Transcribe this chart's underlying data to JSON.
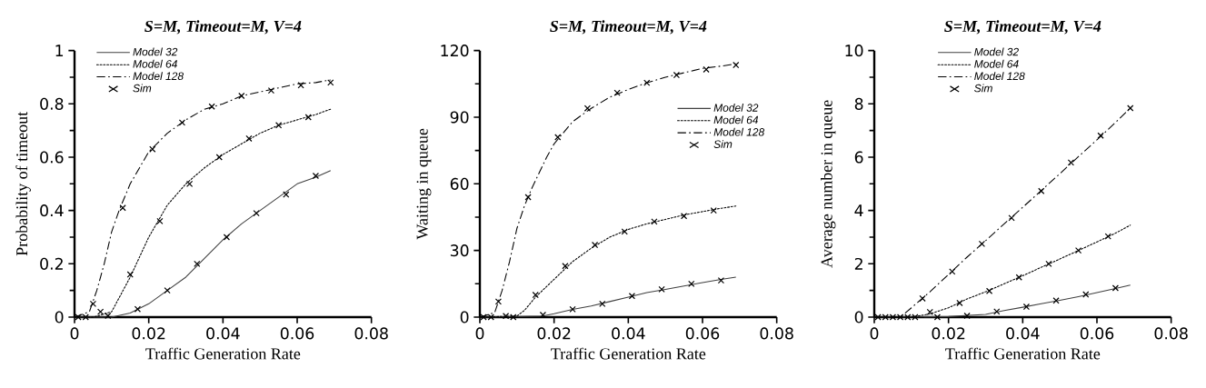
{
  "chart_data": [
    {
      "type": "line",
      "title": "S=M, Timeout=M, V=4",
      "xlabel": "Traffic Generation Rate",
      "ylabel": "Probability of timeout",
      "xlim": [
        0,
        0.08
      ],
      "xticks": [
        0,
        0.02,
        0.04,
        0.06,
        0.08
      ],
      "ylim": [
        0,
        1
      ],
      "yticks": [
        0,
        0.2,
        0.4,
        0.6,
        0.8,
        1
      ],
      "legend": "top left",
      "series": [
        {
          "name": "Model 32",
          "type": "line",
          "color": "#404040",
          "line_style": "solid",
          "x": [
            0,
            0.01,
            0.015,
            0.02,
            0.025,
            0.03,
            0.035,
            0.04,
            0.045,
            0.05,
            0.055,
            0.06,
            0.065,
            0.069
          ],
          "values": [
            0,
            0,
            0.015,
            0.05,
            0.1,
            0.15,
            0.22,
            0.29,
            0.35,
            0.4,
            0.45,
            0.5,
            0.525,
            0.55
          ]
        },
        {
          "name": "Model 64",
          "type": "line",
          "color": "#000000",
          "line_style": "dotted",
          "x": [
            0,
            0.005,
            0.01,
            0.015,
            0.02,
            0.025,
            0.03,
            0.035,
            0.04,
            0.045,
            0.05,
            0.055,
            0.06,
            0.065,
            0.069
          ],
          "values": [
            0,
            0,
            0.02,
            0.15,
            0.3,
            0.42,
            0.5,
            0.56,
            0.61,
            0.65,
            0.69,
            0.72,
            0.74,
            0.76,
            0.78
          ]
        },
        {
          "name": "Model 128",
          "type": "line",
          "color": "#000000",
          "line_style": "dashed",
          "x": [
            0,
            0.004,
            0.006,
            0.008,
            0.01,
            0.012,
            0.015,
            0.02,
            0.025,
            0.03,
            0.035,
            0.04,
            0.045,
            0.05,
            0.055,
            0.06,
            0.065,
            0.069
          ],
          "values": [
            0,
            0.02,
            0.1,
            0.2,
            0.32,
            0.4,
            0.5,
            0.62,
            0.69,
            0.74,
            0.78,
            0.8,
            0.83,
            0.845,
            0.86,
            0.875,
            0.88,
            0.89
          ]
        },
        {
          "name": "Sim",
          "type": "scatter",
          "color": "#000000",
          "marker": "cross",
          "x": [
            0.001,
            0.003,
            0.005,
            0.007,
            0.009,
            0.013,
            0.015,
            0.017,
            0.021,
            0.023,
            0.025,
            0.029,
            0.031,
            0.033,
            0.037,
            0.039,
            0.041,
            0.045,
            0.047,
            0.049,
            0.053,
            0.055,
            0.057,
            0.061,
            0.063,
            0.065,
            0.069
          ],
          "values": [
            0,
            0,
            0.05,
            0.02,
            0.005,
            0.41,
            0.16,
            0.03,
            0.63,
            0.36,
            0.1,
            0.73,
            0.5,
            0.2,
            0.79,
            0.6,
            0.3,
            0.83,
            0.67,
            0.39,
            0.85,
            0.72,
            0.46,
            0.87,
            0.75,
            0.53,
            0.88
          ]
        }
      ]
    },
    {
      "type": "line",
      "title": "S=M, Timeout=M, V=4",
      "xlabel": "Traffic Generation Rate",
      "ylabel": "Waiting in queue",
      "xlim": [
        0,
        0.08
      ],
      "xticks": [
        0,
        0.02,
        0.04,
        0.06,
        0.08
      ],
      "ylim": [
        0,
        120
      ],
      "yticks": [
        0,
        30,
        60,
        90,
        120
      ],
      "legend": "right",
      "series": [
        {
          "name": "Model 32",
          "type": "line",
          "color": "#404040",
          "line_style": "solid",
          "x": [
            0,
            0.017,
            0.02,
            0.025,
            0.03,
            0.035,
            0.04,
            0.045,
            0.05,
            0.055,
            0.06,
            0.065,
            0.069
          ],
          "values": [
            0,
            0.5,
            1.5,
            3.5,
            5,
            7,
            9,
            11,
            12.5,
            14,
            15.5,
            17,
            18
          ]
        },
        {
          "name": "Model 64",
          "type": "line",
          "color": "#000000",
          "line_style": "dotted",
          "x": [
            0,
            0.01,
            0.012,
            0.015,
            0.02,
            0.025,
            0.03,
            0.035,
            0.04,
            0.045,
            0.05,
            0.055,
            0.06,
            0.065,
            0.069
          ],
          "values": [
            0,
            0.5,
            3,
            9,
            17,
            25,
            31,
            36,
            39.5,
            42,
            44,
            46,
            47.5,
            49,
            50
          ]
        },
        {
          "name": "Model 128",
          "type": "line",
          "color": "#000000",
          "line_style": "dashed",
          "x": [
            0,
            0.004,
            0.006,
            0.008,
            0.01,
            0.012,
            0.014,
            0.016,
            0.018,
            0.02,
            0.025,
            0.03,
            0.035,
            0.04,
            0.045,
            0.05,
            0.055,
            0.06,
            0.065,
            0.069
          ],
          "values": [
            0,
            2,
            12,
            25,
            40,
            50,
            58,
            65,
            72,
            78,
            88,
            94,
            99,
            102.5,
            105.5,
            108,
            110,
            112,
            113,
            114
          ]
        },
        {
          "name": "Sim",
          "type": "scatter",
          "color": "#000000",
          "marker": "cross",
          "x": [
            0.001,
            0.003,
            0.005,
            0.007,
            0.009,
            0.013,
            0.015,
            0.017,
            0.021,
            0.023,
            0.025,
            0.029,
            0.031,
            0.033,
            0.037,
            0.039,
            0.041,
            0.045,
            0.047,
            0.049,
            0.053,
            0.055,
            0.057,
            0.061,
            0.063,
            0.065,
            0.069
          ],
          "values": [
            0,
            0,
            7,
            0.5,
            0,
            54,
            10,
            1,
            81,
            23,
            3.5,
            94,
            32.5,
            6,
            101,
            38.5,
            9.5,
            105.5,
            43,
            12.5,
            109,
            45.5,
            15,
            111.5,
            48,
            16.5,
            113.5
          ]
        }
      ]
    },
    {
      "type": "line",
      "title": "S=M, Timeout=M, V=4",
      "xlabel": "Traffic Generation Rate",
      "ylabel": "Average number in queue",
      "xlim": [
        0,
        0.08
      ],
      "xticks": [
        0,
        0.02,
        0.04,
        0.06,
        0.08
      ],
      "ylim": [
        0,
        10
      ],
      "yticks": [
        0,
        2,
        4,
        6,
        8,
        10
      ],
      "legend": "top",
      "series": [
        {
          "name": "Model 32",
          "type": "line",
          "color": "#404040",
          "line_style": "solid",
          "x": [
            0,
            0.02,
            0.03,
            0.035,
            0.04,
            0.045,
            0.05,
            0.055,
            0.06,
            0.065,
            0.069
          ],
          "values": [
            0,
            0.02,
            0.1,
            0.25,
            0.37,
            0.5,
            0.63,
            0.77,
            0.92,
            1.07,
            1.2
          ]
        },
        {
          "name": "Model 64",
          "type": "line",
          "color": "#000000",
          "line_style": "dotted",
          "x": [
            0,
            0.01,
            0.015,
            0.02,
            0.025,
            0.03,
            0.035,
            0.04,
            0.045,
            0.05,
            0.055,
            0.06,
            0.065,
            0.069
          ],
          "values": [
            0,
            0,
            0.12,
            0.35,
            0.68,
            0.95,
            1.25,
            1.55,
            1.87,
            2.18,
            2.5,
            2.82,
            3.15,
            3.45
          ]
        },
        {
          "name": "Model 128",
          "type": "line",
          "color": "#000000",
          "line_style": "dashed",
          "x": [
            0,
            0.007,
            0.01,
            0.015,
            0.02,
            0.025,
            0.03,
            0.035,
            0.04,
            0.045,
            0.05,
            0.055,
            0.06,
            0.065,
            0.069
          ],
          "values": [
            0,
            0,
            0.35,
            0.95,
            1.6,
            2.25,
            2.87,
            3.5,
            4.12,
            4.75,
            5.38,
            6.02,
            6.65,
            7.3,
            7.85
          ]
        },
        {
          "name": "Sim",
          "type": "scatter",
          "color": "#000000",
          "marker": "cross",
          "x": [
            0.001,
            0.003,
            0.005,
            0.007,
            0.009,
            0.011,
            0.013,
            0.015,
            0.017,
            0.021,
            0.023,
            0.025,
            0.029,
            0.031,
            0.033,
            0.037,
            0.039,
            0.041,
            0.045,
            0.047,
            0.049,
            0.053,
            0.055,
            0.057,
            0.061,
            0.063,
            0.065,
            0.069
          ],
          "values": [
            0,
            0,
            0,
            0,
            0,
            0,
            0.7,
            0.19,
            0,
            1.71,
            0.53,
            0.05,
            2.75,
            0.98,
            0.21,
            3.72,
            1.49,
            0.39,
            4.73,
            2,
            0.62,
            5.8,
            2.5,
            0.85,
            6.81,
            3.03,
            1.09,
            7.84
          ]
        }
      ]
    }
  ]
}
